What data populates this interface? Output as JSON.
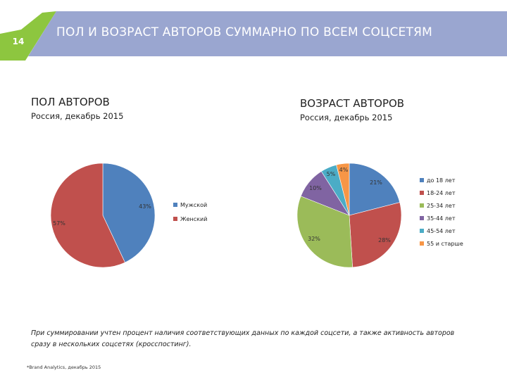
{
  "slide": {
    "number": "14",
    "title": "ПОЛ И ВОЗРАСТ АВТОРОВ СУММАРНО ПО ВСЕМ СОЦСЕТЯМ",
    "colors": {
      "banner": "#9aa6d0",
      "accent": "#8dc63f"
    }
  },
  "sections": {
    "gender": {
      "title": "ПОЛ АВТОРОВ",
      "subtitle": "Россия, декабрь 2015"
    },
    "age": {
      "title": "ВОЗРАСТ АВТОРОВ",
      "subtitle": "Россия, декабрь 2015"
    }
  },
  "chart_data": [
    {
      "type": "pie",
      "categories": [
        "Мужской",
        "Женский"
      ],
      "values": [
        43,
        57
      ],
      "labels": [
        "43%",
        "57%"
      ],
      "colors": [
        "#4f81bd",
        "#c0504d"
      ],
      "legend": "right"
    },
    {
      "type": "pie",
      "categories": [
        "до 18 лет",
        "18-24 лет",
        "25-34 лет",
        "35-44 лет",
        "45-54 лет",
        "55 и старше"
      ],
      "values": [
        21,
        28,
        32,
        10,
        5,
        4
      ],
      "labels": [
        "21%",
        "28%",
        "32%",
        "10%",
        "5%",
        "4%"
      ],
      "colors": [
        "#4f81bd",
        "#c0504d",
        "#9bbb59",
        "#8064a2",
        "#4bacc6",
        "#f79646"
      ],
      "legend": "right"
    }
  ],
  "footnote": "При суммировании учтен процент наличия соответствующих данных по каждой соцсети, а также активность авторов сразу в нескольких соцсетях (кросспостинг).",
  "source": "*Brand Analytics, декабрь 2015"
}
